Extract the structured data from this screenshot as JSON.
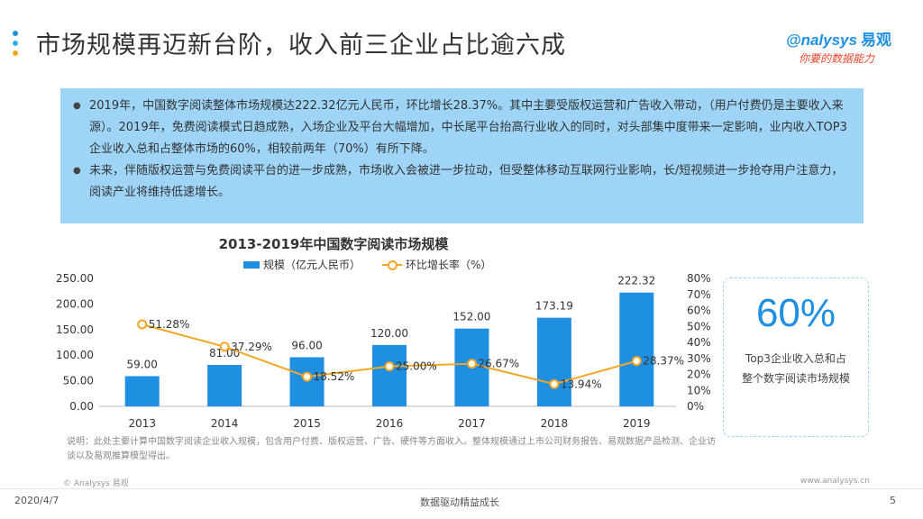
{
  "header": {
    "title": "市场规模再迈新台阶，收入前三企业占比逾六成",
    "logo_text": "nalysys",
    "logo_text_cn": "易观",
    "logo_slogan": "你要的数据能力",
    "accent_color": "#1e8fe1"
  },
  "summary": {
    "bullets": [
      "2019年，中国数字阅读整体市场规模达222.32亿元人民币，环比增长28.37%。其中主要受版权运营和广告收入带动，（用户付费仍是主要收入来源）。2019年，免费阅读模式日趋成熟，入场企业及平台大幅增加，中长尾平台抬高行业收入的同时，对头部集中度带来一定影响，业内收入TOP3企业收入总和占整体市场的60%，相较前两年（70%）有所下降。",
      "未来，伴随版权运营与免费阅读平台的进一步成熟，市场收入会被进一步拉动，但受整体移动互联网行业影响，长/短视频进一步抢夺用户注意力，阅读产业将维持低速增长。"
    ],
    "bullet_symbol": "●"
  },
  "chart_data": {
    "type": "bar",
    "title": "2013-2019年中国数字阅读市场规模",
    "categories": [
      "2013",
      "2014",
      "2015",
      "2016",
      "2017",
      "2018",
      "2019"
    ],
    "series": [
      {
        "name": "规模（亿元人民币）",
        "type": "bar",
        "axis": "left",
        "color": "#1e8fe1",
        "values": [
          59.0,
          81.0,
          96.0,
          120.0,
          152.0,
          173.19,
          222.32
        ],
        "labels": [
          "59.00",
          "81.00",
          "96.00",
          "120.00",
          "152.00",
          "173.19",
          "222.32"
        ]
      },
      {
        "name": "环比增长率（%）",
        "type": "line",
        "axis": "right",
        "color": "#f5a623",
        "values": [
          51.28,
          37.29,
          18.52,
          25.0,
          26.67,
          13.94,
          28.37
        ],
        "labels": [
          "51.28%",
          "37.29%",
          "18.52%",
          "25.00%",
          "26.67%",
          "13.94%",
          "28.37%"
        ]
      }
    ],
    "y_left": {
      "lim": [
        0,
        250
      ],
      "ticks": [
        "0.00",
        "50.00",
        "100.00",
        "150.00",
        "200.00",
        "250.00"
      ]
    },
    "y_right": {
      "lim": [
        0,
        80
      ],
      "ticks": [
        "0%",
        "10%",
        "20%",
        "30%",
        "40%",
        "50%",
        "60%",
        "70%",
        "80%"
      ]
    },
    "grid": false,
    "legend_position": "top"
  },
  "callout": {
    "value": "60%",
    "description": "Top3企业收入总和占整个数字阅读市场规模"
  },
  "note": "说明：此处主要计算中国数字阅读企业收入规模，包含用户付费、版权运营、广告、硬件等方面收入。整体规模通过上市公司财务报告、易观数据产品检测、企业访谈以及易观推算模型得出。",
  "footer": {
    "brand": "© Analysys 易观",
    "url": "www.analysys.cn",
    "date": "2020/4/7",
    "slogan": "数据驱动精益成长",
    "page": "5"
  }
}
